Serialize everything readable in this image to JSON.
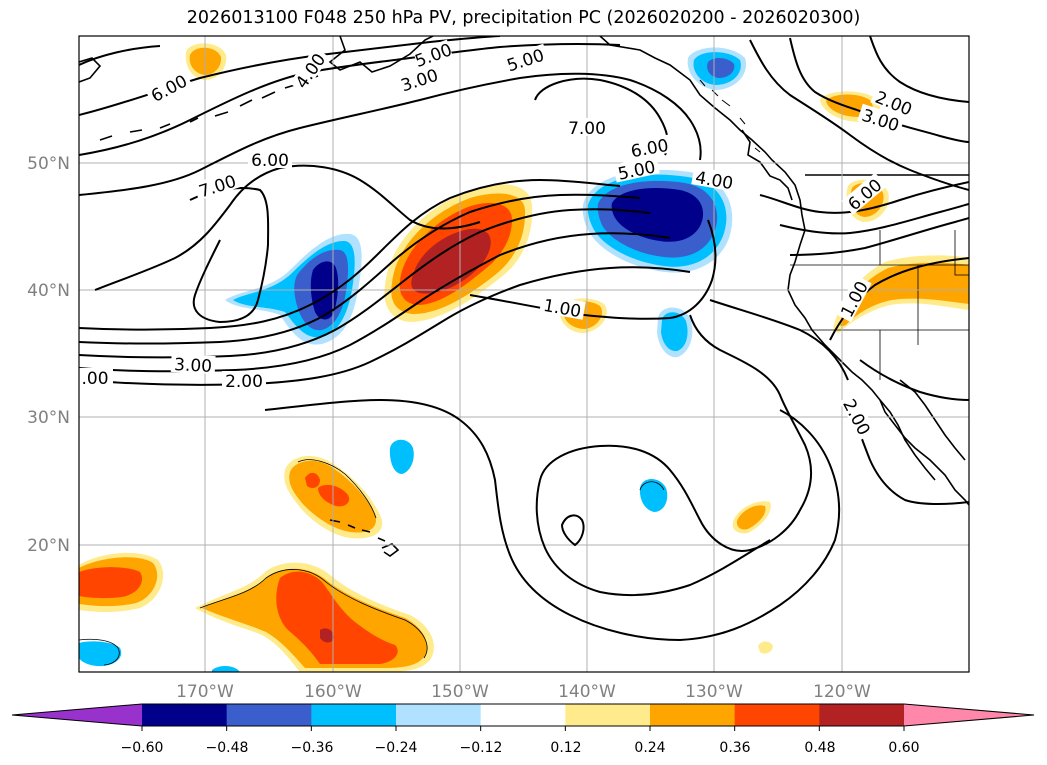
{
  "title": "2026013100 F048 250 hPa PV, precipitation PC (2026020200 - 2026020300)",
  "map": {
    "lon_labels": [
      "170°W",
      "160°W",
      "150°W",
      "140°W",
      "130°W",
      "120°W"
    ],
    "lat_labels": [
      "50°N",
      "40°N",
      "30°N",
      "20°N"
    ],
    "contour_labels": [
      "6.00",
      "7.00",
      "6.00",
      "5.00",
      "4.00",
      "3.00",
      "5.00",
      "7.00",
      "6.00",
      "5.00",
      "4.00",
      "2.00",
      "3.00",
      "6.00",
      "1.00",
      "1.00",
      "3.00",
      "2.00",
      ".00",
      "2.00"
    ]
  },
  "colorbar": {
    "colors": [
      "#9932cc",
      "#00008b",
      "#3a5fcd",
      "#00bfff",
      "#b0e2ff",
      "#ffffff",
      "#ffeb8b",
      "#ffa500",
      "#ff4500",
      "#b22222",
      "#ff88aa"
    ],
    "tick_labels": [
      "−0.60",
      "−0.48",
      "−0.36",
      "−0.24",
      "−0.12",
      "0.12",
      "0.24",
      "0.36",
      "0.48",
      "0.60"
    ]
  }
}
